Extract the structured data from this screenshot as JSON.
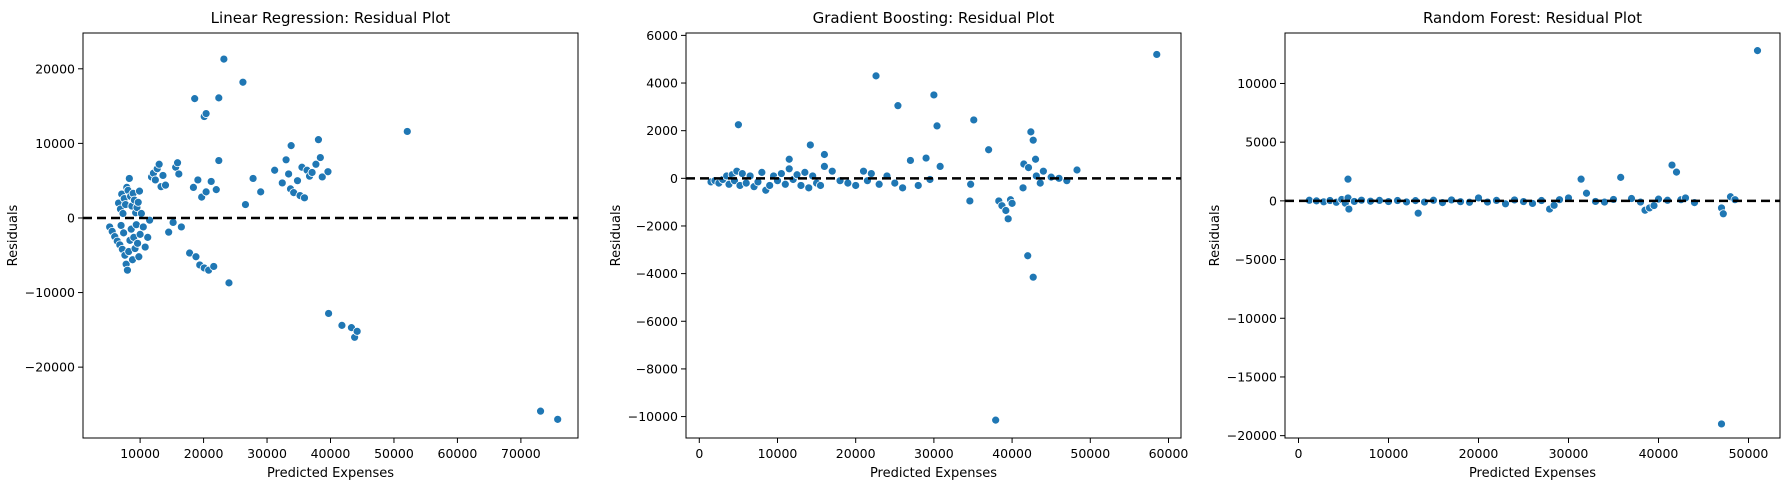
{
  "chart_data": [
    {
      "type": "scatter",
      "title": "Linear Regression: Residual Plot",
      "xlabel": "Predicted Expenses",
      "ylabel": "Residuals",
      "xlim": [
        1000,
        79000
      ],
      "ylim": [
        -29500,
        24800
      ],
      "xticks": [
        10000,
        20000,
        30000,
        40000,
        50000,
        60000,
        70000
      ],
      "yticks": [
        -20000,
        -10000,
        0,
        10000,
        20000
      ],
      "reference_line": 0,
      "point_color": "#1f77b4",
      "points": [
        [
          5200,
          -1200
        ],
        [
          5600,
          -1800
        ],
        [
          6000,
          -2500
        ],
        [
          6400,
          -3100
        ],
        [
          6800,
          -3600
        ],
        [
          7000,
          -1000
        ],
        [
          7200,
          -4200
        ],
        [
          7400,
          -2000
        ],
        [
          7600,
          -5000
        ],
        [
          7800,
          -6200
        ],
        [
          8000,
          -7000
        ],
        [
          8200,
          -4500
        ],
        [
          8400,
          -3000
        ],
        [
          8600,
          -1500
        ],
        [
          8800,
          -5600
        ],
        [
          9000,
          -2600
        ],
        [
          9200,
          -4100
        ],
        [
          9400,
          -900
        ],
        [
          9600,
          -3400
        ],
        [
          9800,
          -5200
        ],
        [
          10000,
          -2200
        ],
        [
          6600,
          2000
        ],
        [
          6900,
          1200
        ],
        [
          7100,
          3200
        ],
        [
          7300,
          600
        ],
        [
          7500,
          2600
        ],
        [
          7700,
          1800
        ],
        [
          7900,
          4100
        ],
        [
          8100,
          3700
        ],
        [
          8300,
          5300
        ],
        [
          8500,
          2900
        ],
        [
          8700,
          1600
        ],
        [
          8900,
          3300
        ],
        [
          9100,
          2400
        ],
        [
          9300,
          700
        ],
        [
          9500,
          1400
        ],
        [
          9700,
          2100
        ],
        [
          9900,
          3600
        ],
        [
          10200,
          600
        ],
        [
          10500,
          -1200
        ],
        [
          10800,
          -3900
        ],
        [
          11200,
          -2600
        ],
        [
          11500,
          -300
        ],
        [
          11800,
          5500
        ],
        [
          12100,
          6000
        ],
        [
          12400,
          5100
        ],
        [
          12700,
          6600
        ],
        [
          13000,
          7200
        ],
        [
          13300,
          4200
        ],
        [
          13600,
          5700
        ],
        [
          14000,
          4400
        ],
        [
          14500,
          -1900
        ],
        [
          15200,
          -600
        ],
        [
          15600,
          6800
        ],
        [
          15900,
          7400
        ],
        [
          16100,
          5900
        ],
        [
          16500,
          -1200
        ],
        [
          17800,
          -4700
        ],
        [
          18400,
          4100
        ],
        [
          18800,
          -5200
        ],
        [
          19100,
          5100
        ],
        [
          19400,
          -6300
        ],
        [
          19700,
          2800
        ],
        [
          20100,
          -6700
        ],
        [
          20400,
          3500
        ],
        [
          20800,
          -7000
        ],
        [
          21200,
          4900
        ],
        [
          21600,
          -6500
        ],
        [
          22000,
          3800
        ],
        [
          22400,
          7700
        ],
        [
          18600,
          16000
        ],
        [
          20100,
          13600
        ],
        [
          20400,
          14000
        ],
        [
          22400,
          16100
        ],
        [
          23200,
          21300
        ],
        [
          26200,
          18200
        ],
        [
          26600,
          1800
        ],
        [
          24000,
          -8700
        ],
        [
          27800,
          5300
        ],
        [
          29000,
          3500
        ],
        [
          31200,
          6400
        ],
        [
          32400,
          4700
        ],
        [
          33000,
          7800
        ],
        [
          33400,
          5900
        ],
        [
          33700,
          3900
        ],
        [
          33800,
          9700
        ],
        [
          34200,
          3400
        ],
        [
          34800,
          5000
        ],
        [
          35200,
          3000
        ],
        [
          35500,
          6800
        ],
        [
          35900,
          2700
        ],
        [
          36300,
          6400
        ],
        [
          36700,
          5600
        ],
        [
          37100,
          6100
        ],
        [
          37700,
          7200
        ],
        [
          38100,
          10500
        ],
        [
          38400,
          8100
        ],
        [
          38700,
          5500
        ],
        [
          39600,
          6200
        ],
        [
          39700,
          -12800
        ],
        [
          41800,
          -14400
        ],
        [
          43300,
          -14700
        ],
        [
          43800,
          -16000
        ],
        [
          44200,
          -15200
        ],
        [
          52100,
          11600
        ],
        [
          73100,
          -25900
        ],
        [
          75800,
          -27000
        ]
      ]
    },
    {
      "type": "scatter",
      "title": "Gradient Boosting: Residual Plot",
      "xlabel": "Predicted Expenses",
      "ylabel": "Residuals",
      "xlim": [
        -1700,
        61600
      ],
      "ylim": [
        -10900,
        6100
      ],
      "xticks": [
        0,
        10000,
        20000,
        30000,
        40000,
        50000,
        60000
      ],
      "yticks": [
        -10000,
        -8000,
        -6000,
        -4000,
        -2000,
        0,
        2000,
        4000,
        6000
      ],
      "reference_line": 0,
      "point_color": "#1f77b4",
      "points": [
        [
          1500,
          -150
        ],
        [
          2000,
          -100
        ],
        [
          2500,
          -200
        ],
        [
          3000,
          -50
        ],
        [
          3500,
          100
        ],
        [
          3800,
          -250
        ],
        [
          4200,
          150
        ],
        [
          4500,
          -100
        ],
        [
          4800,
          300
        ],
        [
          5200,
          -300
        ],
        [
          5500,
          200
        ],
        [
          6000,
          -200
        ],
        [
          6500,
          100
        ],
        [
          7000,
          -350
        ],
        [
          7500,
          -150
        ],
        [
          8000,
          250
        ],
        [
          8500,
          -500
        ],
        [
          9000,
          -300
        ],
        [
          9500,
          100
        ],
        [
          10000,
          -100
        ],
        [
          10500,
          200
        ],
        [
          11000,
          -250
        ],
        [
          11500,
          400
        ],
        [
          12000,
          -50
        ],
        [
          12500,
          150
        ],
        [
          13000,
          -300
        ],
        [
          13500,
          250
        ],
        [
          14000,
          -400
        ],
        [
          14500,
          100
        ],
        [
          15000,
          -200
        ],
        [
          15500,
          -300
        ],
        [
          16000,
          500
        ],
        [
          17000,
          300
        ],
        [
          18000,
          -100
        ],
        [
          19000,
          -200
        ],
        [
          20000,
          -300
        ],
        [
          21000,
          300
        ],
        [
          21500,
          -100
        ],
        [
          22000,
          200
        ],
        [
          23000,
          -250
        ],
        [
          24000,
          100
        ],
        [
          25000,
          -200
        ],
        [
          26000,
          -400
        ],
        [
          28000,
          -300
        ],
        [
          5000,
          2250
        ],
        [
          14200,
          1400
        ],
        [
          16000,
          1000
        ],
        [
          11500,
          800
        ],
        [
          22600,
          4300
        ],
        [
          25400,
          3050
        ],
        [
          27000,
          750
        ],
        [
          29000,
          850
        ],
        [
          29500,
          -50
        ],
        [
          30000,
          3500
        ],
        [
          30400,
          2200
        ],
        [
          30800,
          500
        ],
        [
          35100,
          2450
        ],
        [
          34600,
          -950
        ],
        [
          34700,
          -250
        ],
        [
          37000,
          1200
        ],
        [
          37900,
          -10150
        ],
        [
          38300,
          -950
        ],
        [
          38700,
          -1150
        ],
        [
          39200,
          -1350
        ],
        [
          39500,
          -1700
        ],
        [
          39800,
          -900
        ],
        [
          40000,
          -1050
        ],
        [
          41400,
          -400
        ],
        [
          42000,
          -3250
        ],
        [
          42700,
          -4150
        ],
        [
          42400,
          1950
        ],
        [
          42700,
          1600
        ],
        [
          43000,
          800
        ],
        [
          41500,
          600
        ],
        [
          42100,
          450
        ],
        [
          43100,
          100
        ],
        [
          43600,
          -200
        ],
        [
          44000,
          300
        ],
        [
          45000,
          50
        ],
        [
          46000,
          0
        ],
        [
          47000,
          -100
        ],
        [
          48300,
          350
        ],
        [
          58500,
          5200
        ]
      ]
    },
    {
      "type": "scatter",
      "title": "Random Forest: Residual Plot",
      "xlabel": "Predicted Expenses",
      "ylabel": "Residuals",
      "xlim": [
        -1500,
        53500
      ],
      "ylim": [
        -20200,
        14300
      ],
      "xticks": [
        0,
        10000,
        20000,
        30000,
        40000,
        50000
      ],
      "yticks": [
        -20000,
        -15000,
        -10000,
        -5000,
        0,
        5000,
        10000
      ],
      "reference_line": 0,
      "point_color": "#1f77b4",
      "points": [
        [
          1200,
          50
        ],
        [
          2000,
          0
        ],
        [
          2800,
          -80
        ],
        [
          3500,
          30
        ],
        [
          4200,
          -120
        ],
        [
          4800,
          120
        ],
        [
          5200,
          -200
        ],
        [
          5500,
          250
        ],
        [
          5600,
          -700
        ],
        [
          5500,
          1850
        ],
        [
          6200,
          -50
        ],
        [
          7000,
          60
        ],
        [
          8000,
          -30
        ],
        [
          9000,
          40
        ],
        [
          10000,
          -60
        ],
        [
          11000,
          30
        ],
        [
          12000,
          -90
        ],
        [
          13000,
          20
        ],
        [
          13300,
          -1050
        ],
        [
          14000,
          -100
        ],
        [
          15000,
          50
        ],
        [
          16000,
          -150
        ],
        [
          17000,
          80
        ],
        [
          18000,
          -70
        ],
        [
          19000,
          -120
        ],
        [
          20000,
          250
        ],
        [
          21000,
          -100
        ],
        [
          22000,
          40
        ],
        [
          23000,
          -250
        ],
        [
          24000,
          80
        ],
        [
          25000,
          -60
        ],
        [
          26000,
          -220
        ],
        [
          27000,
          30
        ],
        [
          27900,
          -700
        ],
        [
          28400,
          -380
        ],
        [
          29000,
          100
        ],
        [
          30000,
          250
        ],
        [
          31400,
          1850
        ],
        [
          32000,
          650
        ],
        [
          33000,
          -50
        ],
        [
          34000,
          -100
        ],
        [
          35000,
          120
        ],
        [
          35800,
          2000
        ],
        [
          37000,
          200
        ],
        [
          38000,
          -100
        ],
        [
          38500,
          -800
        ],
        [
          39000,
          -600
        ],
        [
          39500,
          -400
        ],
        [
          40000,
          150
        ],
        [
          41000,
          50
        ],
        [
          41500,
          3050
        ],
        [
          42000,
          2450
        ],
        [
          42500,
          100
        ],
        [
          43000,
          250
        ],
        [
          44000,
          -150
        ],
        [
          47000,
          -600
        ],
        [
          47200,
          -1100
        ],
        [
          47000,
          -19000
        ],
        [
          48000,
          350
        ],
        [
          48500,
          100
        ],
        [
          51000,
          12800
        ]
      ]
    }
  ]
}
